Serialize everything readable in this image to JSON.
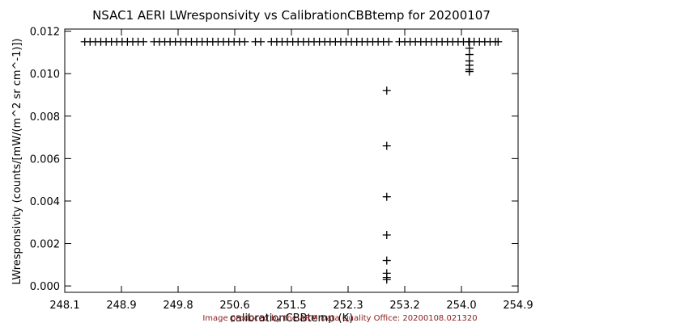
{
  "chart_data": {
    "type": "scatter",
    "title": "NSAC1 AERI LWresponsivity vs CalibrationCBBtemp for 20200107",
    "x_label": "calibrationCBBtemp (K)",
    "y_label": "LWresponsivity (counts/[mW/(m^2 sr cm^-1)])",
    "color": "#000000",
    "x": [
      248.4,
      248.48,
      248.56,
      248.64,
      248.72,
      248.8,
      248.88,
      248.96,
      249.04,
      249.12,
      249.2,
      249.28,
      249.44,
      249.52,
      249.6,
      249.68,
      249.76,
      249.84,
      249.92,
      250.0,
      250.08,
      250.16,
      250.24,
      250.32,
      250.4,
      250.48,
      250.56,
      250.64,
      250.72,
      250.8,
      250.96,
      251.04,
      251.2,
      251.28,
      251.36,
      251.44,
      251.52,
      251.6,
      251.68,
      251.76,
      251.84,
      251.92,
      252.0,
      252.08,
      252.16,
      252.24,
      252.32,
      252.4,
      252.48,
      252.56,
      252.64,
      252.72,
      252.8,
      252.88,
      252.96,
      253.12,
      253.2,
      253.28,
      253.36,
      253.44,
      253.52,
      253.6,
      253.68,
      253.76,
      253.84,
      253.92,
      254.0,
      254.08,
      254.16,
      254.24,
      254.32,
      254.4,
      254.48,
      254.56,
      254.6,
      252.93,
      252.93,
      252.93,
      252.93,
      252.93,
      252.93,
      252.93,
      252.93,
      254.17,
      254.17,
      254.17,
      254.17,
      254.17,
      254.17,
      254.17
    ],
    "values": [
      0.0115,
      0.0115,
      0.0115,
      0.0115,
      0.0115,
      0.0115,
      0.0115,
      0.0115,
      0.0115,
      0.0115,
      0.0115,
      0.0115,
      0.0115,
      0.0115,
      0.0115,
      0.0115,
      0.0115,
      0.0115,
      0.0115,
      0.0115,
      0.0115,
      0.0115,
      0.0115,
      0.0115,
      0.0115,
      0.0115,
      0.0115,
      0.0115,
      0.0115,
      0.0115,
      0.0115,
      0.0115,
      0.0115,
      0.0115,
      0.0115,
      0.0115,
      0.0115,
      0.0115,
      0.0115,
      0.0115,
      0.0115,
      0.0115,
      0.0115,
      0.0115,
      0.0115,
      0.0115,
      0.0115,
      0.0115,
      0.0115,
      0.0115,
      0.0115,
      0.0115,
      0.0115,
      0.0115,
      0.0115,
      0.0115,
      0.0115,
      0.0115,
      0.0115,
      0.0115,
      0.0115,
      0.0115,
      0.0115,
      0.0115,
      0.0115,
      0.0115,
      0.0115,
      0.0115,
      0.0115,
      0.0115,
      0.0115,
      0.0115,
      0.0115,
      0.0115,
      0.0115,
      0.0092,
      0.0066,
      0.0042,
      0.0024,
      0.0012,
      0.0006,
      0.0004,
      0.0003,
      0.0115,
      0.0112,
      0.0109,
      0.0106,
      0.0104,
      0.0102,
      0.0101
    ],
    "xlim": [
      248.1,
      254.9
    ],
    "xticks": [
      {
        "value": 248.1,
        "label": "248.1"
      },
      {
        "value": 248.95,
        "label": "248.9"
      },
      {
        "value": 249.8,
        "label": "249.8"
      },
      {
        "value": 250.65,
        "label": "250.6"
      },
      {
        "value": 251.5,
        "label": "251.5"
      },
      {
        "value": 252.35,
        "label": "252.3"
      },
      {
        "value": 253.2,
        "label": "253.2"
      },
      {
        "value": 254.05,
        "label": "254.0"
      },
      {
        "value": 254.9,
        "label": "254.9"
      }
    ],
    "ylim": [
      -0.0003,
      0.0121
    ],
    "yticks": [
      {
        "value": 0,
        "label": "0.000"
      },
      {
        "value": 0.002,
        "label": "0.002"
      },
      {
        "value": 0.004,
        "label": "0.004"
      },
      {
        "value": 0.006,
        "label": "0.006"
      },
      {
        "value": 0.008,
        "label": "0.008"
      },
      {
        "value": 0.01,
        "label": "0.010"
      },
      {
        "value": 0.012,
        "label": "0.012"
      }
    ],
    "grid": false
  },
  "footer": "Image produced by the ARM Data Quality Office: 20200108.021320"
}
